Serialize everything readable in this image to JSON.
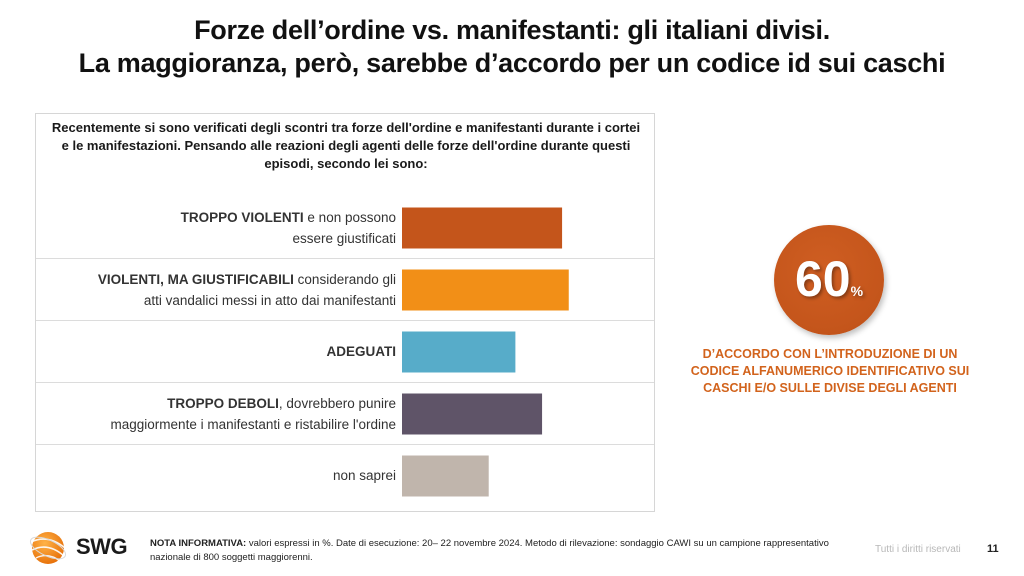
{
  "title": {
    "line1": "Forze dell’ordine vs. manifestanti: gli italiani divisi.",
    "line2": "La maggioranza, però, sarebbe d’accordo per un codice id sui caschi"
  },
  "chart_data": {
    "type": "bar",
    "orientation": "horizontal",
    "title": "Recentemente si sono verificati degli scontri tra forze dell'ordine e manifestanti durante i cortei e le manifestazioni. Pensando alle reazioni degli agenti delle forze dell'ordine durante questi episodi, secondo lei sono:",
    "xlabel": "",
    "ylabel": "",
    "unit": "%",
    "xlim": [
      0,
      30
    ],
    "grid": false,
    "categories": [
      "TROPPO VIOLENTI e non possono essere giustificati",
      "VIOLENTI, MA GIUSTIFICABILI considerando gli atti vandalici messi in atto dai manifestanti",
      "ADEGUATI",
      "TROPPO DEBOLI, dovrebbero punire maggiormente i manifestanti e ristabilire l'ordine",
      "non saprei"
    ],
    "values": [
      24,
      25,
      17,
      21,
      13
    ],
    "colors": [
      "#c4551b",
      "#f28f17",
      "#57acc9",
      "#5f5468",
      "#c0b5ac"
    ],
    "labels": [
      {
        "bold": "TROPPO VIOLENTI",
        "rest_line1": " e non possono",
        "line2": "essere giustificati"
      },
      {
        "bold": "VIOLENTI, MA GIUSTIFICABILI",
        "rest_line1": " considerando gli",
        "line2": "atti vandalici messi in atto dai manifestanti"
      },
      {
        "bold": "ADEGUATI",
        "rest_line1": "",
        "line2": ""
      },
      {
        "bold": "TROPPO DEBOLI",
        "rest_line1": ", dovrebbero punire",
        "line2": "maggiormente i manifestanti e ristabilire l'ordine"
      },
      {
        "bold": "",
        "rest_line1": "non saprei",
        "line2": ""
      }
    ]
  },
  "highlight": {
    "value": "60",
    "unit": "%",
    "caption": "D’ACCORDO CON L’INTRODUZIONE DI UN CODICE ALFANUMERICO IDENTIFICATIVO SUI CASCHI E/O SULLE DIVISE DEGLI AGENTI",
    "color": "#c4551b"
  },
  "footer": {
    "logo_text": "SWG",
    "note_label": "NOTA INFORMATIVA:",
    "note_text": " valori espressi in %. Date di esecuzione: 20– 22 novembre 2024. Metodo di rilevazione: sondaggio CAWI su un campione rappresentativo nazionale di 800 soggetti maggiorenni.",
    "rights": "Tutti i diritti riservati",
    "page": "11"
  }
}
